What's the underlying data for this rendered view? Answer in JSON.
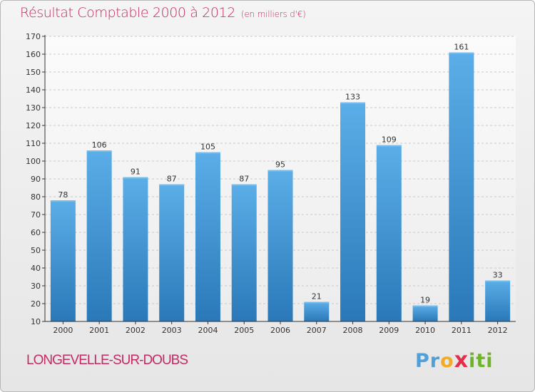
{
  "header": {
    "title": "Résultat Comptable 2000 à 2012",
    "unit": "(en milliers d'€)"
  },
  "footer": {
    "place": "LONGEVELLE-SUR-DOUBS",
    "logo_letters": [
      "P",
      "r",
      "o",
      "x",
      "i",
      "t",
      "i"
    ]
  },
  "colors": {
    "title": "#c42a63",
    "bar_light": "#5baee8",
    "bar_dark": "#2a78b8",
    "axis": "#333333"
  },
  "chart_data": {
    "type": "bar",
    "categories": [
      "2000",
      "2001",
      "2002",
      "2003",
      "2004",
      "2005",
      "2006",
      "2007",
      "2008",
      "2009",
      "2010",
      "2011",
      "2012"
    ],
    "values": [
      78,
      106,
      91,
      87,
      105,
      87,
      95,
      21,
      133,
      109,
      19,
      161,
      33
    ],
    "data_labels": [
      "78",
      "106",
      "91",
      "87",
      "105",
      "87",
      "95",
      "21",
      "133",
      "109",
      "19",
      "161",
      "33"
    ],
    "y_ticks": [
      "10",
      "20",
      "30",
      "40",
      "50",
      "60",
      "70",
      "80",
      "90",
      "100",
      "110",
      "120",
      "130",
      "140",
      "150",
      "160",
      "170"
    ],
    "ylim": [
      10,
      170
    ],
    "grid": "horizontal dashed",
    "legend": "none"
  }
}
